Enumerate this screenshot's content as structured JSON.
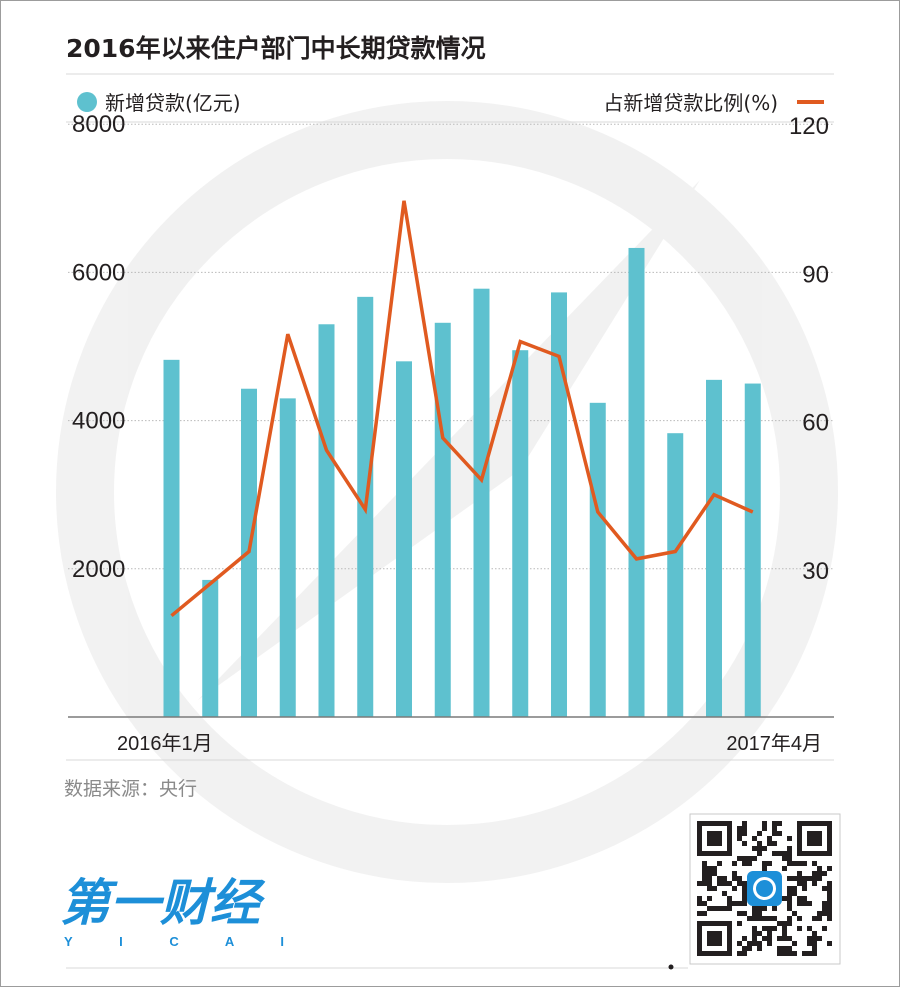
{
  "header": {
    "title": "2016年以来住户部门中长期贷款情况"
  },
  "legend": {
    "bar_label": "新增贷款(亿元)",
    "line_label": "占新增贷款比例(%)"
  },
  "footer": {
    "source": "数据来源：央行",
    "logo_cn": "第一财经",
    "logo_en": "Y I C A I"
  },
  "colors": {
    "bar": "#5ec1cf",
    "line": "#e05a20",
    "grid": "#b9b9b9",
    "axis": "#7a7a7a",
    "title_text": "#231f20",
    "source_text": "#8a8a8a",
    "logo": "#1d8fd8"
  },
  "chart_data": {
    "type": "bar",
    "title": "2016年以来住户部门中长期贷款情况",
    "categories": [
      "2016-01",
      "2016-02",
      "2016-03",
      "2016-04",
      "2016-05",
      "2016-06",
      "2016-07",
      "2016-08",
      "2016-09",
      "2016-10",
      "2016-11",
      "2016-12",
      "2017-01",
      "2017-02",
      "2017-03",
      "2017-04"
    ],
    "x_tick_labels": [
      {
        "category_index": 0,
        "text": "2016年1月"
      },
      {
        "category_index": 15,
        "text": "2017年4月"
      }
    ],
    "series": [
      {
        "name": "新增贷款(亿元)",
        "type": "bar",
        "axis": "left",
        "values": [
          4820,
          1850,
          4430,
          4300,
          5300,
          5670,
          4800,
          5320,
          5780,
          4950,
          5730,
          4240,
          6330,
          3830,
          4550,
          4500
        ]
      },
      {
        "name": "占新增贷款比例(%)",
        "type": "line",
        "axis": "right",
        "values": [
          20.5,
          27,
          33.5,
          77.5,
          54,
          42,
          104.5,
          56.5,
          48,
          76,
          73,
          41.5,
          32,
          33.5,
          45,
          41.5
        ]
      }
    ],
    "left_axis": {
      "ylim": [
        0,
        8000
      ],
      "ticks": [
        "8000",
        "6000",
        "4000",
        "2000"
      ]
    },
    "right_axis": {
      "ylim": [
        0,
        120
      ],
      "ticks": [
        "120",
        "90",
        "60",
        "30"
      ]
    },
    "grid": true,
    "legend_position": "top"
  }
}
